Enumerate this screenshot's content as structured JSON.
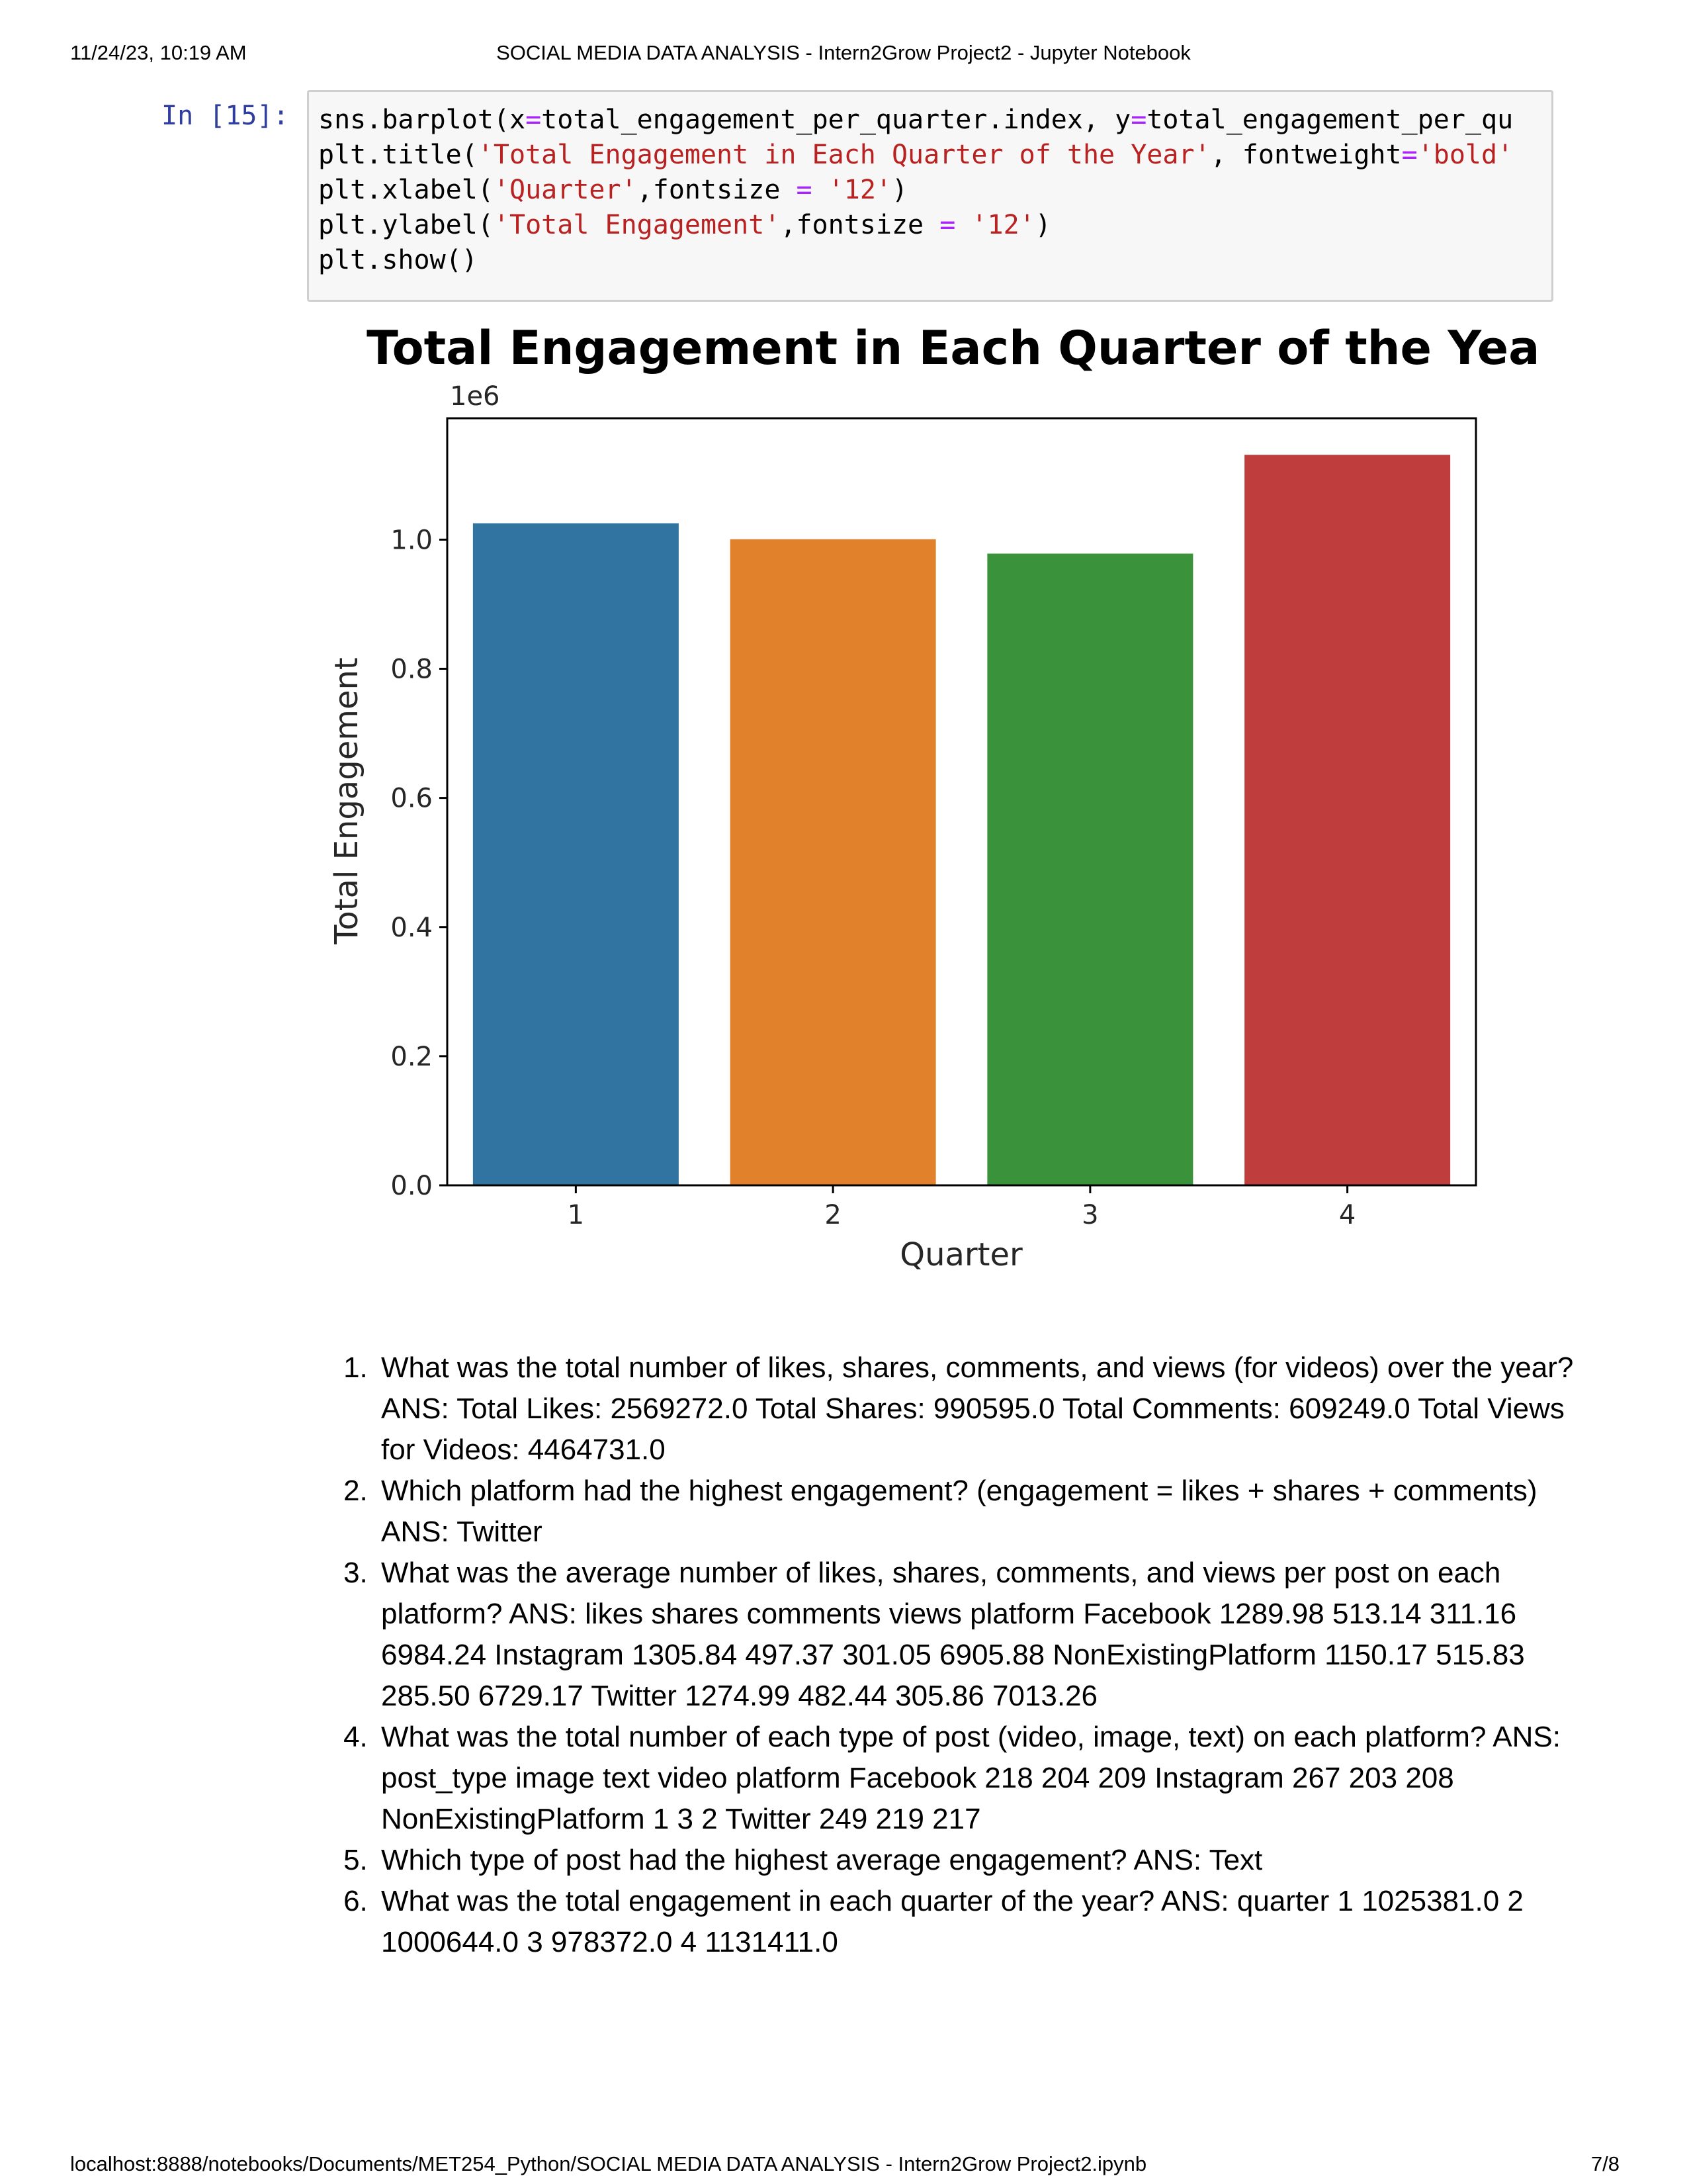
{
  "header": {
    "datetime": "11/24/23, 10:19 AM",
    "title": "SOCIAL MEDIA DATA ANALYSIS - Intern2Grow  Project2 - Jupyter Notebook"
  },
  "cell": {
    "prompt": "In [15]:",
    "code_lines": [
      "sns.barplot(x=total_engagement_per_quarter.index, y=total_engagement_per_qu",
      "plt.title('Total Engagement in Each Quarter of the Year', fontweight='bold'",
      "plt.xlabel('Quarter',fontsize = '12')",
      "plt.ylabel('Total Engagement',fontsize = '12')",
      "plt.show()"
    ]
  },
  "chart_data": {
    "type": "bar",
    "title": "Total Engagement in Each Quarter of the Year",
    "xlabel": "Quarter",
    "ylabel": "Total Engagement",
    "scale_label": "1e6",
    "categories": [
      "1",
      "2",
      "3",
      "4"
    ],
    "values": [
      1025381.0,
      1000644.0,
      978372.0,
      1131411.0
    ],
    "ylim": [
      0,
      1187981.55
    ],
    "yticks": [
      0.0,
      0.2,
      0.4,
      0.6,
      0.8,
      1.0
    ],
    "ytick_labels": [
      "0.0",
      "0.2",
      "0.4",
      "0.6",
      "0.8",
      "1.0"
    ],
    "colors": [
      "#3274a1",
      "#e1812c",
      "#3a923a",
      "#c03d3e"
    ],
    "grid": false,
    "legend": "none"
  },
  "qa": [
    "What was the total number of likes, shares, comments, and views (for videos) over the year? ANS: Total Likes: 2569272.0 Total Shares: 990595.0 Total Comments: 609249.0 Total Views for Videos: 4464731.0",
    "Which platform had the highest engagement? (engagement = likes + shares + comments) ANS: Twitter",
    "What was the average number of likes, shares, comments, and views per post on each platform? ANS: likes shares comments views platform Facebook 1289.98 513.14 311.16 6984.24 Instagram 1305.84 497.37 301.05 6905.88 NonExistingPlatform 1150.17 515.83 285.50 6729.17 Twitter 1274.99 482.44 305.86 7013.26",
    "What was the total number of each type of post (video, image, text) on each platform? ANS: post_type image text video platform Facebook 218 204 209 Instagram 267 203 208 NonExistingPlatform 1 3 2 Twitter 249 219 217",
    "Which type of post had the highest average engagement? ANS: Text",
    "What was the total engagement in each quarter of the year? ANS: quarter 1 1025381.0 2 1000644.0 3 978372.0 4 1131411.0"
  ],
  "footer": {
    "url": "localhost:8888/notebooks/Documents/MET254_Python/SOCIAL MEDIA DATA ANALYSIS - Intern2Grow  Project2.ipynb",
    "page": "7/8"
  }
}
